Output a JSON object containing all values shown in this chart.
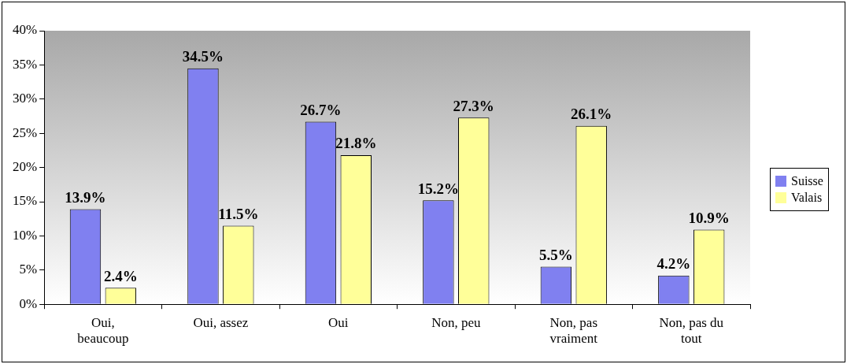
{
  "chart_data": {
    "type": "bar",
    "categories": [
      "Oui,\nbeaucoup",
      "Oui, assez",
      "Oui",
      "Non, peu",
      "Non, pas\nvraiment",
      "Non, pas du\ntout"
    ],
    "series": [
      {
        "name": "Suisse",
        "color": "#8080f0",
        "values": [
          13.9,
          34.5,
          26.7,
          15.2,
          5.5,
          4.2
        ],
        "value_labels": [
          "13.9%",
          "34.5%",
          "26.7%",
          "15.2%",
          "5.5%",
          "4.2%"
        ]
      },
      {
        "name": "Valais",
        "color": "#ffff99",
        "values": [
          2.4,
          11.5,
          21.8,
          27.3,
          26.1,
          10.9
        ],
        "value_labels": [
          "2.4%",
          "11.5%",
          "21.8%",
          "27.3%",
          "26.1%",
          "10.9%"
        ]
      }
    ],
    "ylim": [
      0,
      40
    ],
    "yticks": [
      {
        "value": 0,
        "label": "0%"
      },
      {
        "value": 5,
        "label": "5%"
      },
      {
        "value": 10,
        "label": "10%"
      },
      {
        "value": 15,
        "label": "15%"
      },
      {
        "value": 20,
        "label": "20%"
      },
      {
        "value": 25,
        "label": "25%"
      },
      {
        "value": 30,
        "label": "30%"
      },
      {
        "value": 35,
        "label": "35%"
      },
      {
        "value": 40,
        "label": "40%"
      }
    ],
    "grid": false,
    "legend": "right"
  }
}
